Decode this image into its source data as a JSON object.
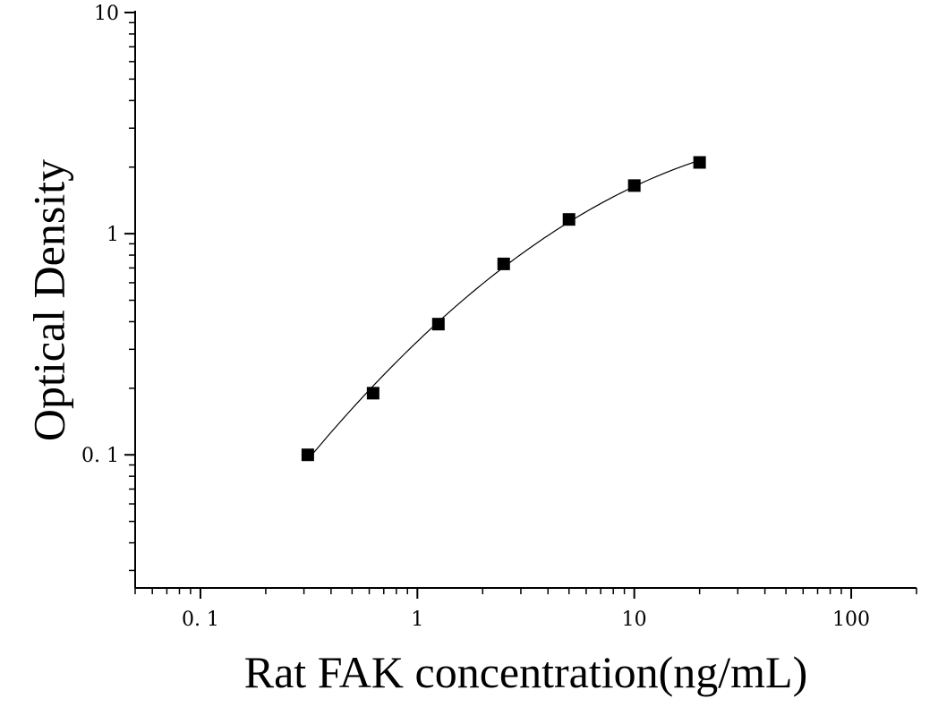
{
  "chart_data": {
    "type": "scatter",
    "title": "",
    "xlabel": "Rat FAK concentration(ng/mL)",
    "ylabel": "Optical Density",
    "x_scale": "log",
    "y_scale": "log",
    "xlim": [
      0.05,
      200
    ],
    "ylim": [
      0.025,
      10
    ],
    "x_tick_labels": [
      "0. 1",
      "1",
      "10",
      "100"
    ],
    "x_tick_values": [
      0.1,
      1,
      10,
      100
    ],
    "y_tick_labels": [
      "0. 1",
      "1",
      "10"
    ],
    "y_tick_values": [
      0.1,
      1,
      10
    ],
    "grid": false,
    "legend": "none",
    "series": [
      {
        "x": [
          0.3125,
          0.625,
          1.25,
          2.5,
          5,
          10,
          20
        ],
        "y": [
          0.1,
          0.19,
          0.39,
          0.73,
          1.16,
          1.65,
          2.1
        ],
        "marker": "square",
        "fit_line": true
      }
    ],
    "colors": {
      "marker": "#000000",
      "line": "#000000",
      "axis": "#000000"
    }
  }
}
